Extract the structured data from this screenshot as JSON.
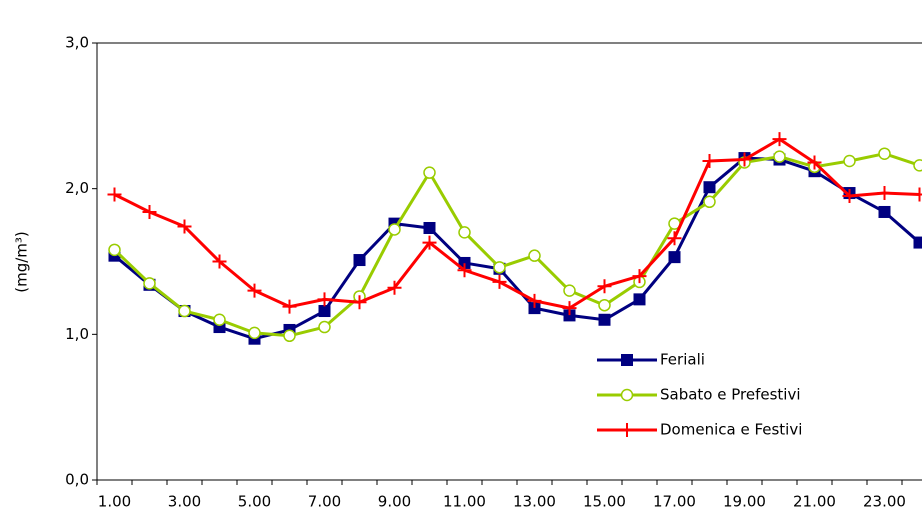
{
  "chart_data": {
    "type": "line",
    "y_label": "(mg/m³)",
    "categories": [
      "1.00",
      null,
      "3.00",
      null,
      "5.00",
      null,
      "7.00",
      null,
      "9.00",
      null,
      "11.00",
      null,
      "13.00",
      null,
      "15.00",
      null,
      "17.00",
      null,
      "19.00",
      null,
      "21.00",
      null,
      "23.00",
      null
    ],
    "series": [
      {
        "name": "Feriali",
        "color": "#000080",
        "marker": "square",
        "values": [
          1.54,
          1.34,
          1.16,
          1.05,
          0.97,
          1.03,
          1.16,
          1.51,
          1.76,
          1.73,
          1.49,
          1.45,
          1.18,
          1.13,
          1.1,
          1.24,
          1.53,
          2.01,
          2.21,
          2.2,
          2.12,
          1.97,
          1.84,
          1.63
        ]
      },
      {
        "name": "Sabato e Prefestivi",
        "color": "#99cc00",
        "marker": "circle",
        "values": [
          1.58,
          1.35,
          1.16,
          1.1,
          1.01,
          0.99,
          1.05,
          1.26,
          1.72,
          2.11,
          1.7,
          1.46,
          1.54,
          1.3,
          1.2,
          1.36,
          1.76,
          1.91,
          2.18,
          2.22,
          2.15,
          2.19,
          2.24,
          2.16
        ]
      },
      {
        "name": "Domenica e Festivi",
        "color": "#ff0000",
        "marker": "plus",
        "values": [
          1.96,
          1.84,
          1.74,
          1.5,
          1.3,
          1.19,
          1.24,
          1.22,
          1.32,
          1.63,
          1.44,
          1.36,
          1.23,
          1.18,
          1.33,
          1.4,
          1.66,
          2.19,
          2.2,
          2.34,
          2.18,
          1.95,
          1.97,
          1.96
        ]
      }
    ],
    "ylim": [
      0,
      3
    ],
    "yticks": [
      {
        "value": 0,
        "label": "0,0"
      },
      {
        "value": 1,
        "label": "1,0"
      },
      {
        "value": 2,
        "label": "2,0"
      },
      {
        "value": 3,
        "label": "3,0"
      }
    ],
    "legend": "inside"
  }
}
